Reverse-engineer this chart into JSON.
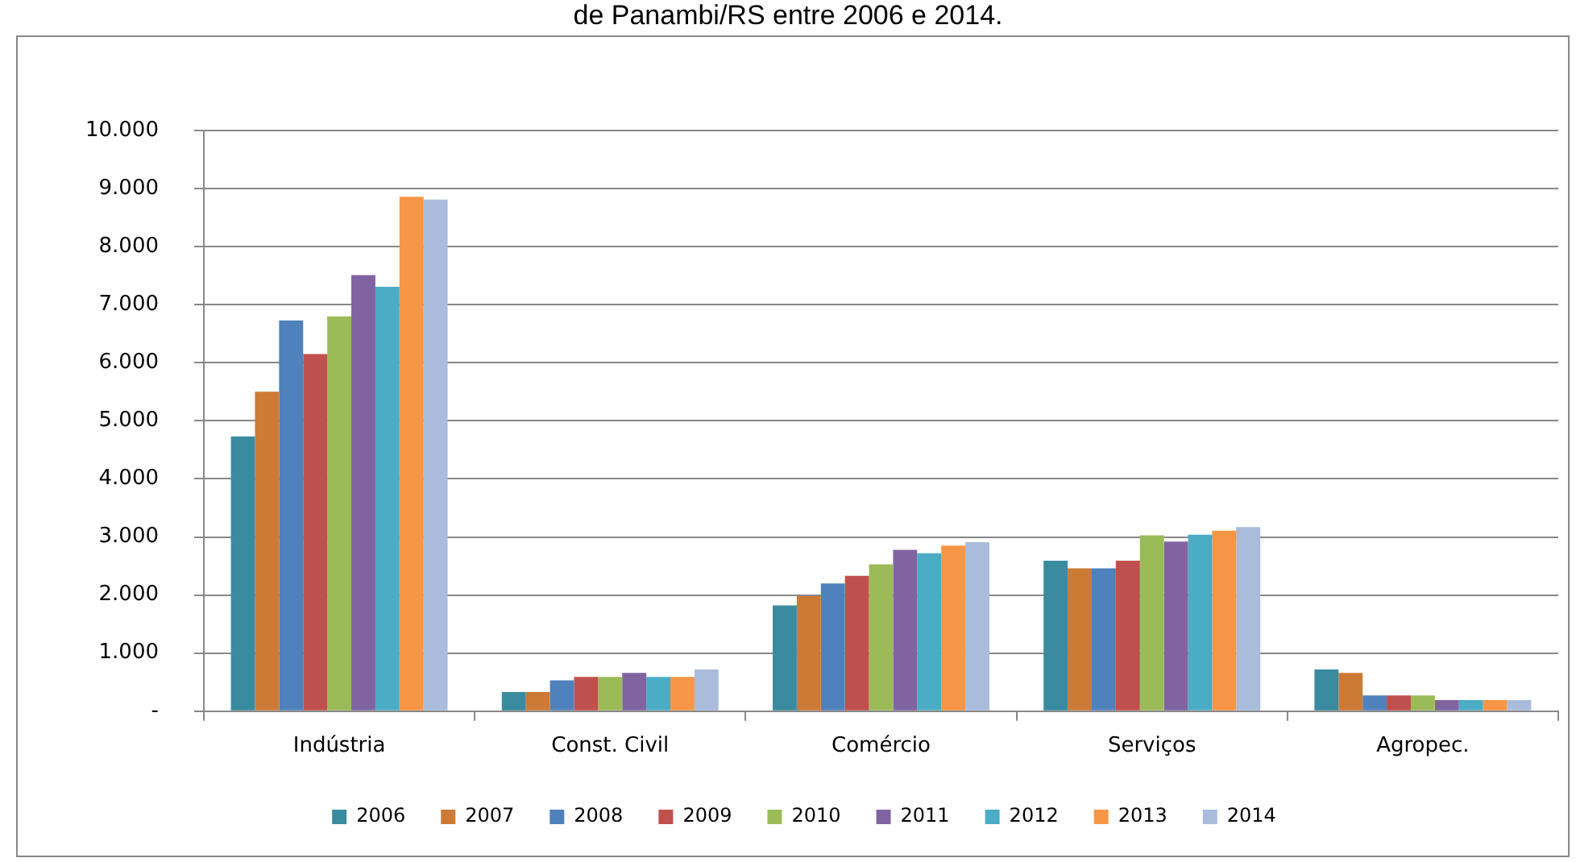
{
  "chart_data": {
    "type": "bar",
    "title": "de Panambi/RS entre 2006 e 2014.",
    "categories": [
      "Indústria",
      "Const. Civil",
      "Comércio",
      "Serviços",
      "Agropec."
    ],
    "series": [
      {
        "name": "2006",
        "color": "#3a8ba0",
        "values": [
          4730,
          330,
          1820,
          2590,
          720
        ]
      },
      {
        "name": "2007",
        "color": "#cc7a35",
        "values": [
          5500,
          330,
          1980,
          2460,
          660
        ]
      },
      {
        "name": "2008",
        "color": "#4f81bd",
        "values": [
          6730,
          530,
          2200,
          2460,
          270
        ]
      },
      {
        "name": "2009",
        "color": "#c0504d",
        "values": [
          6150,
          590,
          2330,
          2590,
          270
        ]
      },
      {
        "name": "2010",
        "color": "#9bbb59",
        "values": [
          6800,
          590,
          2530,
          3030,
          270
        ]
      },
      {
        "name": "2011",
        "color": "#8064a2",
        "values": [
          7510,
          660,
          2780,
          2920,
          190
        ]
      },
      {
        "name": "2012",
        "color": "#4bacc6",
        "values": [
          7310,
          590,
          2720,
          3040,
          190
        ]
      },
      {
        "name": "2013",
        "color": "#f79646",
        "values": [
          8860,
          590,
          2850,
          3110,
          190
        ]
      },
      {
        "name": "2014",
        "color": "#a9bcdb",
        "values": [
          8810,
          720,
          2910,
          3170,
          190
        ]
      }
    ],
    "ylim": [
      0,
      10000
    ],
    "yticks": [
      {
        "value": 0,
        "label": "-"
      },
      {
        "value": 1000,
        "label": "1.000"
      },
      {
        "value": 2000,
        "label": "2.000"
      },
      {
        "value": 3000,
        "label": "3.000"
      },
      {
        "value": 4000,
        "label": "4.000"
      },
      {
        "value": 5000,
        "label": "5.000"
      },
      {
        "value": 6000,
        "label": "6.000"
      },
      {
        "value": 7000,
        "label": "7.000"
      },
      {
        "value": 8000,
        "label": "8.000"
      },
      {
        "value": 9000,
        "label": "9.000"
      },
      {
        "value": 10000,
        "label": "10.000"
      }
    ],
    "grid": "y",
    "legend": "bottom"
  }
}
